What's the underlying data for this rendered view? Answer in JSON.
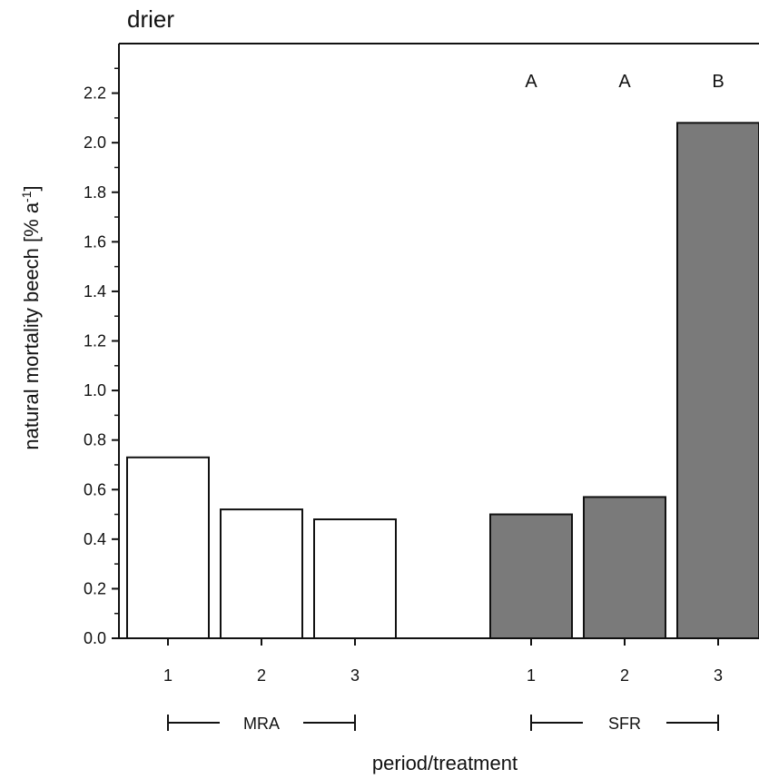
{
  "chart_data": {
    "type": "bar",
    "title": "drier",
    "xlabel": "period/treatment",
    "ylabel": "natural mortality beech [% a",
    "ylabel_sup": "-1",
    "ylabel_end": "]",
    "ylim": [
      0,
      2.4
    ],
    "yticks": [
      "0.0",
      "0.2",
      "0.4",
      "0.6",
      "0.8",
      "1.0",
      "1.2",
      "1.4",
      "1.6",
      "1.8",
      "2.0",
      "2.2"
    ],
    "groups": [
      {
        "name": "MRA",
        "color": "#ffffff",
        "bars": [
          {
            "category": "1",
            "value": 0.73,
            "letter": ""
          },
          {
            "category": "2",
            "value": 0.52,
            "letter": ""
          },
          {
            "category": "3",
            "value": 0.48,
            "letter": ""
          }
        ]
      },
      {
        "name": "SFR",
        "color": "#7a7a7a",
        "bars": [
          {
            "category": "1",
            "value": 0.5,
            "letter": "A"
          },
          {
            "category": "2",
            "value": 0.57,
            "letter": "A"
          },
          {
            "category": "3",
            "value": 2.08,
            "letter": "B"
          }
        ]
      }
    ]
  }
}
